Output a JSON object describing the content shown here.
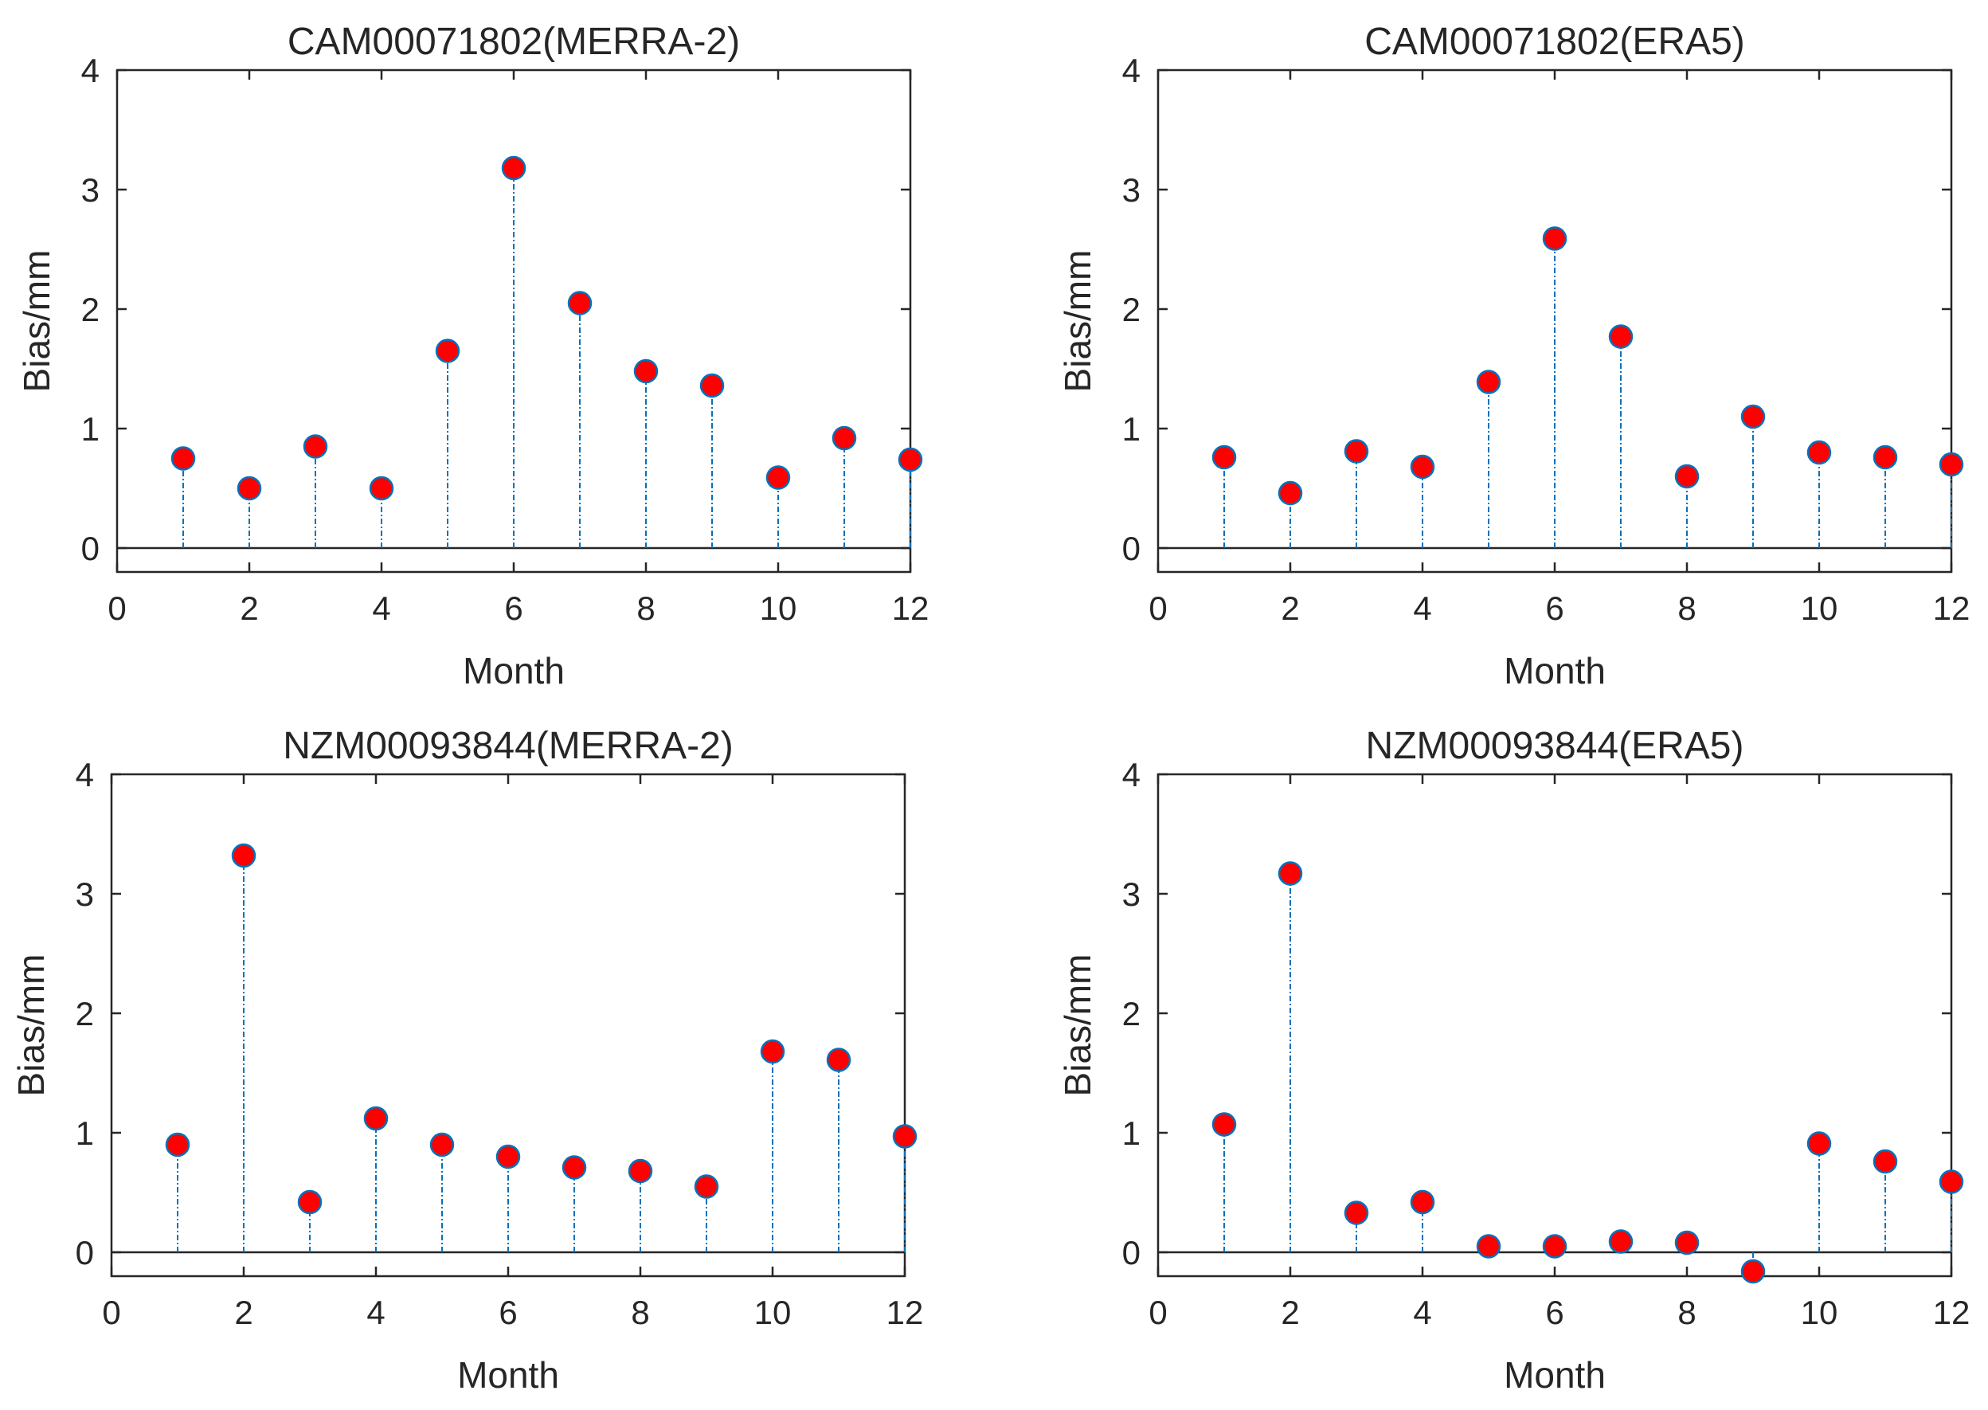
{
  "chart_data": [
    {
      "type": "stem",
      "title": "CAM00071802(MERRA-2)",
      "xlabel": "Month",
      "ylabel": "Bias/mm",
      "xlim": [
        0,
        12
      ],
      "ylim": [
        -0.2,
        4
      ],
      "xticks": [
        "0",
        "2",
        "4",
        "6",
        "8",
        "10",
        "12"
      ],
      "yticks": [
        "0",
        "1",
        "2",
        "3",
        "4"
      ],
      "x": [
        1,
        2,
        3,
        4,
        5,
        6,
        7,
        8,
        9,
        10,
        11,
        12
      ],
      "values": [
        0.75,
        0.5,
        0.85,
        0.5,
        1.65,
        3.18,
        2.05,
        1.48,
        1.36,
        0.59,
        0.92,
        0.74
      ]
    },
    {
      "type": "stem",
      "title": "CAM00071802(ERA5)",
      "xlabel": "Month",
      "ylabel": "Bias/mm",
      "xlim": [
        0,
        12
      ],
      "ylim": [
        -0.2,
        4
      ],
      "xticks": [
        "0",
        "2",
        "4",
        "6",
        "8",
        "10",
        "12"
      ],
      "yticks": [
        "0",
        "1",
        "2",
        "3",
        "4"
      ],
      "x": [
        1,
        2,
        3,
        4,
        5,
        6,
        7,
        8,
        9,
        10,
        11,
        12
      ],
      "values": [
        0.76,
        0.46,
        0.81,
        0.68,
        1.39,
        2.59,
        1.77,
        0.6,
        1.1,
        0.8,
        0.76,
        0.7
      ]
    },
    {
      "type": "stem",
      "title": "NZM00093844(MERRA-2)",
      "xlabel": "Month",
      "ylabel": "Bias/mm",
      "xlim": [
        0,
        12
      ],
      "ylim": [
        -0.2,
        4
      ],
      "xticks": [
        "0",
        "2",
        "4",
        "6",
        "8",
        "10",
        "12"
      ],
      "yticks": [
        "0",
        "1",
        "2",
        "3",
        "4"
      ],
      "x": [
        1,
        2,
        3,
        4,
        5,
        6,
        7,
        8,
        9,
        10,
        11,
        12
      ],
      "values": [
        0.9,
        3.32,
        0.42,
        1.12,
        0.9,
        0.8,
        0.71,
        0.68,
        0.55,
        1.68,
        1.61,
        0.97
      ]
    },
    {
      "type": "stem",
      "title": "NZM00093844(ERA5)",
      "xlabel": "Month",
      "ylabel": "Bias/mm",
      "xlim": [
        0,
        12
      ],
      "ylim": [
        -0.2,
        4
      ],
      "xticks": [
        "0",
        "2",
        "4",
        "6",
        "8",
        "10",
        "12"
      ],
      "yticks": [
        "0",
        "1",
        "2",
        "3",
        "4"
      ],
      "x": [
        1,
        2,
        3,
        4,
        5,
        6,
        7,
        8,
        9,
        10,
        11,
        12
      ],
      "values": [
        1.07,
        3.17,
        0.33,
        0.42,
        0.05,
        0.05,
        0.09,
        0.08,
        -0.16,
        0.91,
        0.76,
        0.59
      ]
    }
  ],
  "colors": {
    "marker_fill": "#ff0000",
    "marker_edge": "#0072bd",
    "stem": "#0072bd",
    "axis": "#262626",
    "baseline": "#262626"
  }
}
